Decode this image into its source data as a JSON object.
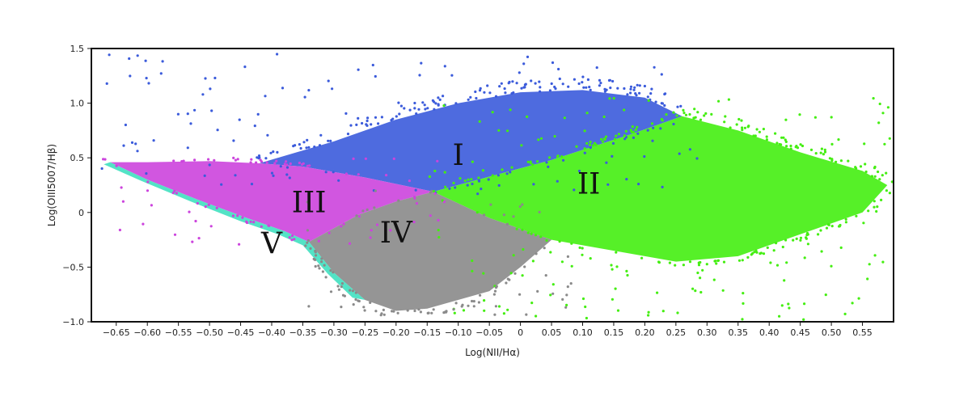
{
  "chart_data": {
    "type": "scatter",
    "xlabel": "Log(NII/Hα)",
    "ylabel": "Log(OIII5007/Hβ)",
    "xlim": [
      -0.69,
      0.6
    ],
    "ylim": [
      -1.0,
      1.5
    ],
    "x_ticks": [
      {
        "value": -0.65,
        "label": "−0.65"
      },
      {
        "value": -0.6,
        "label": "−0.60"
      },
      {
        "value": -0.55,
        "label": "−0.55"
      },
      {
        "value": -0.5,
        "label": "−0.50"
      },
      {
        "value": -0.45,
        "label": "−0.45"
      },
      {
        "value": -0.4,
        "label": "−0.40"
      },
      {
        "value": -0.35,
        "label": "−0.35"
      },
      {
        "value": -0.3,
        "label": "−0.30"
      },
      {
        "value": -0.25,
        "label": "−0.25"
      },
      {
        "value": -0.2,
        "label": "−0.20"
      },
      {
        "value": -0.15,
        "label": "−0.15"
      },
      {
        "value": -0.1,
        "label": "−0.10"
      },
      {
        "value": -0.05,
        "label": "−0.05"
      },
      {
        "value": 0,
        "label": "0"
      },
      {
        "value": 0.05,
        "label": "0.05"
      },
      {
        "value": 0.1,
        "label": "0.10"
      },
      {
        "value": 0.15,
        "label": "0.15"
      },
      {
        "value": 0.2,
        "label": "0.20"
      },
      {
        "value": 0.25,
        "label": "0.25"
      },
      {
        "value": 0.3,
        "label": "0.30"
      },
      {
        "value": 0.35,
        "label": "0.35"
      },
      {
        "value": 0.4,
        "label": "0.40"
      },
      {
        "value": 0.45,
        "label": "0.45"
      },
      {
        "value": 0.5,
        "label": "0.50"
      },
      {
        "value": 0.55,
        "label": "0.55"
      }
    ],
    "y_ticks": [
      {
        "value": 1.5,
        "label": "1.5"
      },
      {
        "value": 1.0,
        "label": "1.0"
      },
      {
        "value": 0.5,
        "label": "0.5"
      },
      {
        "value": 0,
        "label": "0"
      },
      {
        "value": -0.5,
        "label": "−0.5"
      },
      {
        "value": -1.0,
        "label": "−1.0"
      }
    ],
    "grid": false,
    "legend": "none",
    "regions": [
      {
        "label": "I",
        "color": "#3b5bdb",
        "label_at": [
          -0.1,
          0.53
        ],
        "polygon": [
          [
            -0.42,
            0.45
          ],
          [
            -0.36,
            0.55
          ],
          [
            -0.3,
            0.65
          ],
          [
            -0.2,
            0.85
          ],
          [
            -0.1,
            1.0
          ],
          [
            0.0,
            1.1
          ],
          [
            0.1,
            1.12
          ],
          [
            0.2,
            1.05
          ],
          [
            0.26,
            0.88
          ],
          [
            0.18,
            0.72
          ],
          [
            0.05,
            0.48
          ],
          [
            -0.14,
            0.19
          ],
          [
            -0.25,
            0.32
          ],
          [
            -0.35,
            0.42
          ]
        ]
      },
      {
        "label": "II",
        "color": "#44ee11",
        "label_at": [
          0.11,
          0.27
        ],
        "polygon": [
          [
            -0.14,
            0.19
          ],
          [
            0.05,
            0.48
          ],
          [
            0.18,
            0.72
          ],
          [
            0.26,
            0.88
          ],
          [
            0.35,
            0.75
          ],
          [
            0.45,
            0.55
          ],
          [
            0.55,
            0.38
          ],
          [
            0.59,
            0.25
          ],
          [
            0.55,
            0.0
          ],
          [
            0.45,
            -0.2
          ],
          [
            0.35,
            -0.4
          ],
          [
            0.25,
            -0.45
          ],
          [
            0.15,
            -0.35
          ],
          [
            0.05,
            -0.25
          ],
          [
            -0.05,
            -0.05
          ]
        ]
      },
      {
        "label": "III",
        "color": "#cc44dd",
        "label_at": [
          -0.34,
          0.1
        ],
        "polygon": [
          [
            -0.66,
            0.46
          ],
          [
            -0.6,
            0.46
          ],
          [
            -0.5,
            0.47
          ],
          [
            -0.42,
            0.45
          ],
          [
            -0.35,
            0.42
          ],
          [
            -0.25,
            0.32
          ],
          [
            -0.14,
            0.19
          ],
          [
            -0.2,
            0.1
          ],
          [
            -0.26,
            -0.02
          ],
          [
            -0.34,
            -0.27
          ],
          [
            -0.38,
            -0.17
          ],
          [
            -0.44,
            -0.05
          ],
          [
            -0.52,
            0.12
          ],
          [
            -0.6,
            0.3
          ]
        ]
      },
      {
        "label": "IV",
        "color": "#8a8a8a",
        "label_at": [
          -0.2,
          -0.18
        ],
        "polygon": [
          [
            -0.34,
            -0.27
          ],
          [
            -0.26,
            -0.02
          ],
          [
            -0.2,
            0.1
          ],
          [
            -0.14,
            0.19
          ],
          [
            -0.05,
            -0.05
          ],
          [
            0.05,
            -0.25
          ],
          [
            0.0,
            -0.5
          ],
          [
            -0.05,
            -0.72
          ],
          [
            -0.15,
            -0.88
          ],
          [
            -0.2,
            -0.9
          ],
          [
            -0.25,
            -0.8
          ],
          [
            -0.3,
            -0.55
          ]
        ]
      },
      {
        "label": "V",
        "color": "#40e0c0",
        "label_at": [
          -0.4,
          -0.28
        ],
        "polygon": [
          [
            -0.66,
            0.46
          ],
          [
            -0.6,
            0.3
          ],
          [
            -0.52,
            0.12
          ],
          [
            -0.44,
            -0.05
          ],
          [
            -0.38,
            -0.17
          ],
          [
            -0.34,
            -0.27
          ],
          [
            -0.3,
            -0.55
          ],
          [
            -0.25,
            -0.8
          ],
          [
            -0.27,
            -0.78
          ],
          [
            -0.31,
            -0.56
          ],
          [
            -0.35,
            -0.3
          ],
          [
            -0.39,
            -0.2
          ],
          [
            -0.45,
            -0.08
          ],
          [
            -0.53,
            0.1
          ],
          [
            -0.61,
            0.29
          ],
          [
            -0.67,
            0.44
          ]
        ]
      }
    ],
    "scatter": {
      "density": "dense",
      "sparse_outliers": true
    }
  }
}
